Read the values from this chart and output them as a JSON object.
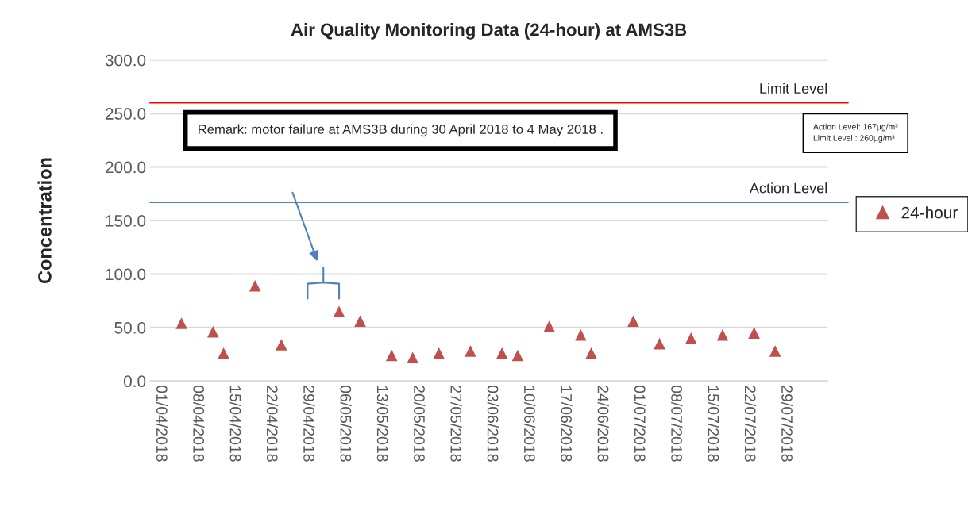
{
  "chart_data": {
    "type": "scatter",
    "title": "Air Quality Monitoring Data (24-hour) at AMS3B",
    "ylabel": "Concentration",
    "x": [
      "2018-04-05",
      "2018-04-11",
      "2018-04-13",
      "2018-04-19",
      "2018-04-24",
      "2018-05-05",
      "2018-05-09",
      "2018-05-15",
      "2018-05-19",
      "2018-05-24",
      "2018-05-30",
      "2018-06-05",
      "2018-06-08",
      "2018-06-14",
      "2018-06-20",
      "2018-06-22",
      "2018-06-30",
      "2018-07-05",
      "2018-07-11",
      "2018-07-17",
      "2018-07-23",
      "2018-07-27"
    ],
    "series": [
      {
        "name": "24-hour",
        "color": "#c0504d",
        "marker": "triangle",
        "values": [
          54,
          46,
          26,
          89,
          34,
          65,
          56,
          24,
          22,
          26,
          28,
          26,
          24,
          51,
          43,
          26,
          56,
          35,
          40,
          43,
          45,
          28
        ]
      }
    ],
    "ylim": [
      0,
      300
    ],
    "yticks": [
      {
        "value": 0,
        "label": "0.0"
      },
      {
        "value": 50,
        "label": "50.0"
      },
      {
        "value": 100,
        "label": "100.0"
      },
      {
        "value": 150,
        "label": "150.0"
      },
      {
        "value": 200,
        "label": "200.0"
      },
      {
        "value": 250,
        "label": "250.0"
      },
      {
        "value": 300,
        "label": "300.0"
      }
    ],
    "xlim": [
      "2018-03-30",
      "2018-08-06"
    ],
    "xticks": [
      {
        "value": "2018-04-01",
        "label": "01/04/2018"
      },
      {
        "value": "2018-04-08",
        "label": "08/04/2018"
      },
      {
        "value": "2018-04-15",
        "label": "15/04/2018"
      },
      {
        "value": "2018-04-22",
        "label": "22/04/2018"
      },
      {
        "value": "2018-04-29",
        "label": "29/04/2018"
      },
      {
        "value": "2018-05-06",
        "label": "06/05/2018"
      },
      {
        "value": "2018-05-13",
        "label": "13/05/2018"
      },
      {
        "value": "2018-05-20",
        "label": "20/05/2018"
      },
      {
        "value": "2018-05-27",
        "label": "27/05/2018"
      },
      {
        "value": "2018-06-03",
        "label": "03/06/2018"
      },
      {
        "value": "2018-06-10",
        "label": "10/06/2018"
      },
      {
        "value": "2018-06-17",
        "label": "17/06/2018"
      },
      {
        "value": "2018-06-24",
        "label": "24/06/2018"
      },
      {
        "value": "2018-07-01",
        "label": "01/07/2018"
      },
      {
        "value": "2018-07-08",
        "label": "08/07/2018"
      },
      {
        "value": "2018-07-15",
        "label": "15/07/2018"
      },
      {
        "value": "2018-07-22",
        "label": "22/07/2018"
      },
      {
        "value": "2018-07-29",
        "label": "29/07/2018"
      }
    ],
    "ref_lines": [
      {
        "axis": "y",
        "value": 260,
        "label": "Limit Level",
        "color": "#ff0000"
      },
      {
        "axis": "y",
        "value": 167,
        "label": "Action Level",
        "color": "#4f81bd"
      }
    ],
    "annotations": [
      "Remark: motor failure at AMS3B during 30 April 2018 to 4 May 2018 .",
      "Action Level: 167µg/m³\nLimit Level : 260µg/m³"
    ],
    "grid": "y",
    "legend": "right"
  }
}
